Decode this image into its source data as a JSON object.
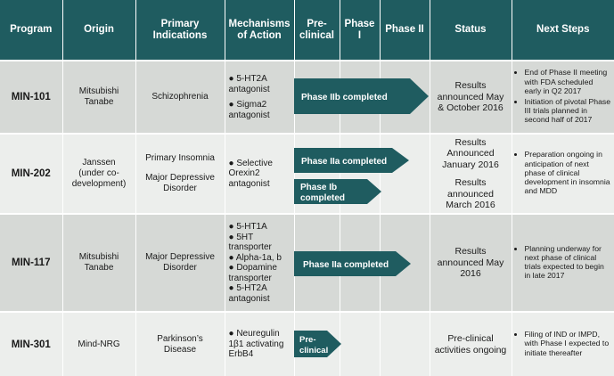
{
  "headers": {
    "program": "Program",
    "origin": "Origin",
    "indications": "Primary\nIndications",
    "mechanisms": "Mechanisms\nof Action",
    "preclinical": "Pre-\nclinical",
    "phase1": "Phase\nI",
    "phase2": "Phase II",
    "status": "Status",
    "next": "Next Steps"
  },
  "rows": [
    {
      "program": "MIN-101",
      "origin": "Mitsubishi\nTanabe",
      "indications": [
        "Schizophrenia"
      ],
      "mechanisms": [
        "5-HT2A\nantagonist",
        "Sigma2\nantagonist"
      ],
      "arrows": [
        "Phase IIb completed"
      ],
      "status": [
        "Results\nannounced May\n& October 2016"
      ],
      "next": [
        "End of Phase II meeting with FDA scheduled early in Q2 2017",
        "Initiation of pivotal Phase III trials planned in second half of 2017"
      ]
    },
    {
      "program": "MIN-202",
      "origin": "Janssen\n(under co-\ndevelopment)",
      "indications": [
        "Primary Insomnia",
        "Major Depressive\nDisorder"
      ],
      "mechanisms": [
        "Selective\nOrexin2\nantagonist"
      ],
      "arrows": [
        "Phase IIa completed",
        "Phase Ib\ncompleted"
      ],
      "status": [
        "Results\nAnnounced\nJanuary 2016",
        "Results\nannounced\nMarch 2016"
      ],
      "next": [
        "Preparation ongoing in anticipation of next phase of clinical development in insomnia and MDD"
      ]
    },
    {
      "program": "MIN-117",
      "origin": "Mitsubishi\nTanabe",
      "indications": [
        "Major Depressive\nDisorder"
      ],
      "mechanisms": [
        "5-HT1A",
        "5HT\ntransporter",
        "Alpha-1a, b",
        "Dopamine\ntransporter",
        "5-HT2A\nantagonist"
      ],
      "arrows": [
        "Phase IIa completed"
      ],
      "status": [
        "Results\nannounced May\n2016"
      ],
      "next": [
        "Planning underway for next phase of clinical trials expected to begin in late 2017"
      ]
    },
    {
      "program": "MIN-301",
      "origin": "Mind-NRG",
      "indications": [
        "Parkinson’s\nDisease"
      ],
      "mechanisms": [
        "Neuregulin\n1β1 activating\nErbB4"
      ],
      "arrows": [
        "Pre-\nclinical"
      ],
      "status": [
        "Pre-clinical\nactivities ongoing"
      ],
      "next": [
        "Filing of IND or IMPD, with Phase I expected to initiate thereafter"
      ]
    }
  ],
  "colors": {
    "header_bg": "#1f5c60",
    "arrow_fill": "#1f5c60",
    "row_dark": "#d6d9d6",
    "row_light": "#eceeec"
  }
}
